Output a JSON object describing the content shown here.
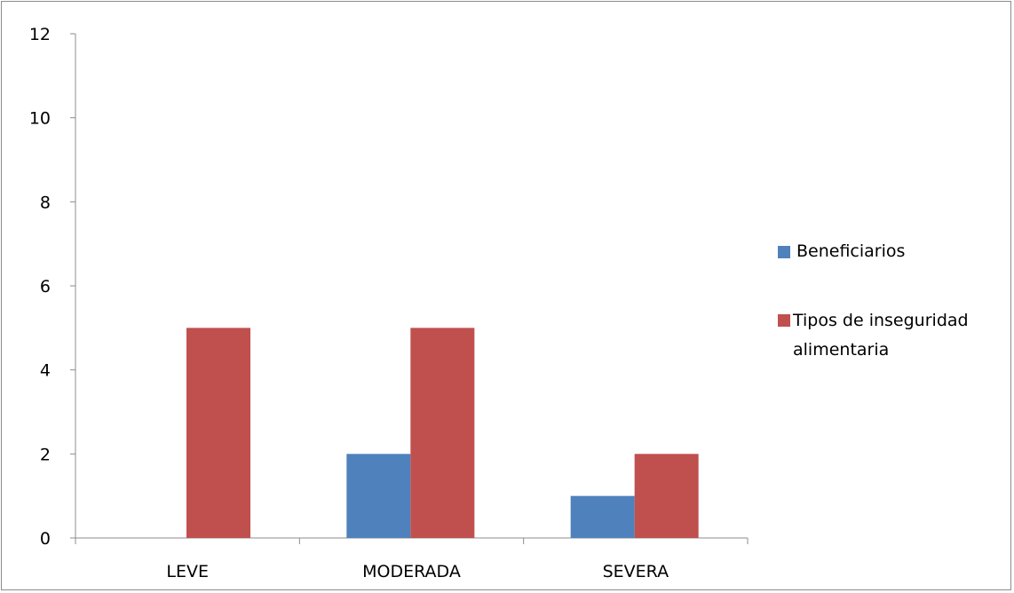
{
  "chart_data": {
    "type": "bar",
    "categories": [
      "LEVE",
      "MODERADA",
      "SEVERA"
    ],
    "series": [
      {
        "name": "Beneficiarios",
        "values": [
          0,
          2,
          1
        ],
        "color": "#4f81bd"
      },
      {
        "name": "Tipos de inseguridad alimentaria",
        "values": [
          5,
          5,
          2
        ],
        "color": "#c0504d"
      }
    ],
    "yticks": [
      0,
      2,
      4,
      6,
      8,
      10,
      12
    ],
    "ylim": [
      0,
      12
    ],
    "grid": false,
    "legend_position": "right",
    "legend": {
      "series0_label": "Beneficiarios",
      "series1_label_line1": "Tipos de inseguridad",
      "series1_label_line2": "alimentaria"
    }
  }
}
